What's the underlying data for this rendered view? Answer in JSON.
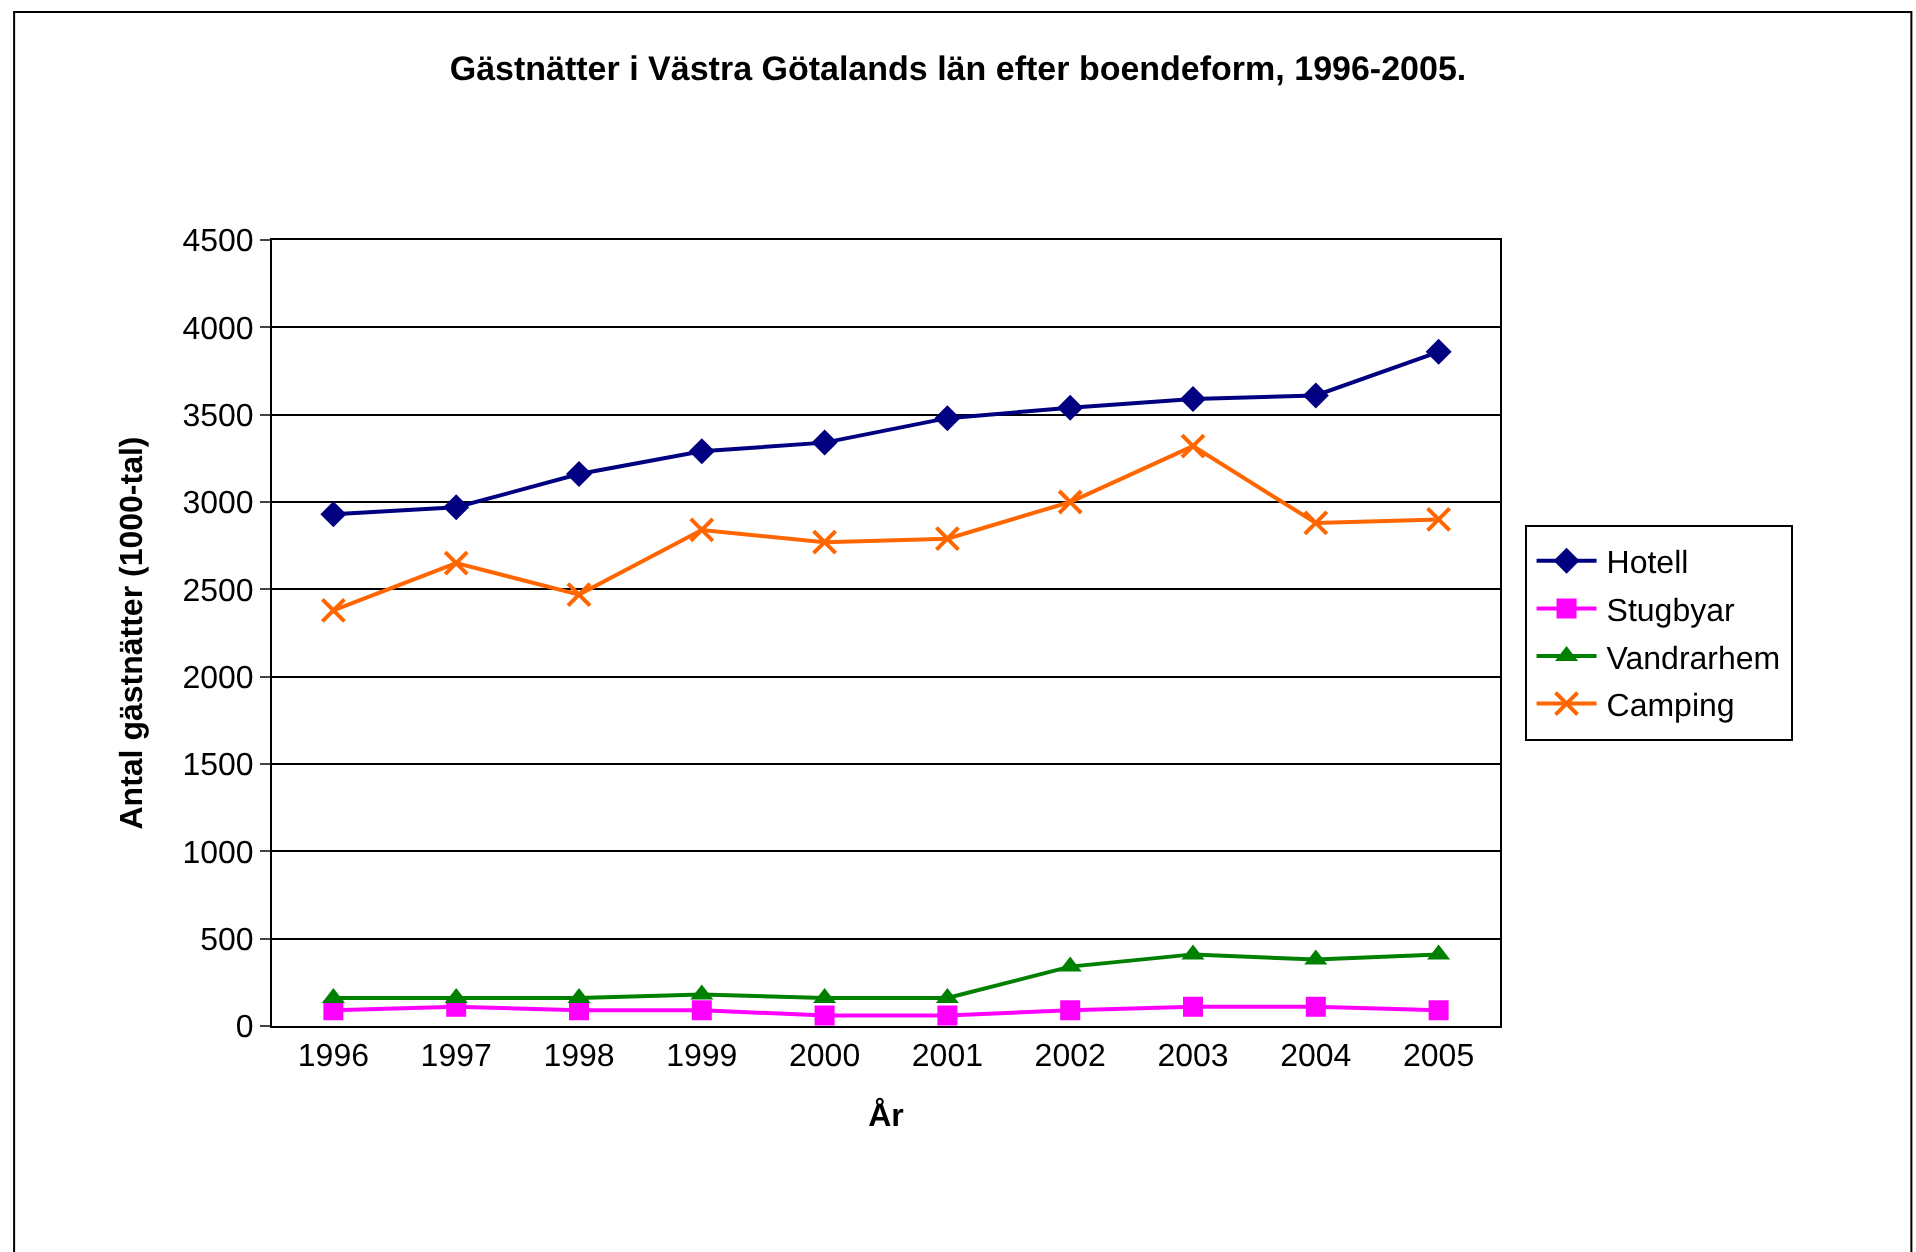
{
  "chart_data": {
    "type": "line",
    "title": "Gästnätter i Västra Götalands län efter boendeform, 1996-2005.",
    "xlabel": "År",
    "ylabel": "Antal gästnätter (1000-tal)",
    "categories": [
      "1996",
      "1997",
      "1998",
      "1999",
      "2000",
      "2001",
      "2002",
      "2003",
      "2004",
      "2005"
    ],
    "series": [
      {
        "name": "Hotell",
        "color": "#000080",
        "marker": "diamond",
        "values": [
          2930,
          2970,
          3160,
          3290,
          3340,
          3480,
          3540,
          3590,
          3610,
          3860
        ]
      },
      {
        "name": "Stugbyar",
        "color": "#ff00ff",
        "marker": "square",
        "values": [
          90,
          110,
          90,
          90,
          60,
          60,
          90,
          110,
          110,
          90
        ]
      },
      {
        "name": "Vandrarhem",
        "color": "#008000",
        "marker": "triangle",
        "values": [
          160,
          160,
          160,
          180,
          160,
          160,
          340,
          410,
          380,
          410
        ]
      },
      {
        "name": "Camping",
        "color": "#ff6600",
        "marker": "cross",
        "values": [
          2380,
          2650,
          2470,
          2840,
          2770,
          2790,
          3000,
          3320,
          2880,
          2900
        ]
      }
    ],
    "ylim": [
      0,
      4500
    ],
    "yticks": [
      0,
      500,
      1000,
      1500,
      2000,
      2500,
      3000,
      3500,
      4000,
      4500
    ],
    "grid": "y",
    "legend": "right",
    "line_style": "solid"
  }
}
